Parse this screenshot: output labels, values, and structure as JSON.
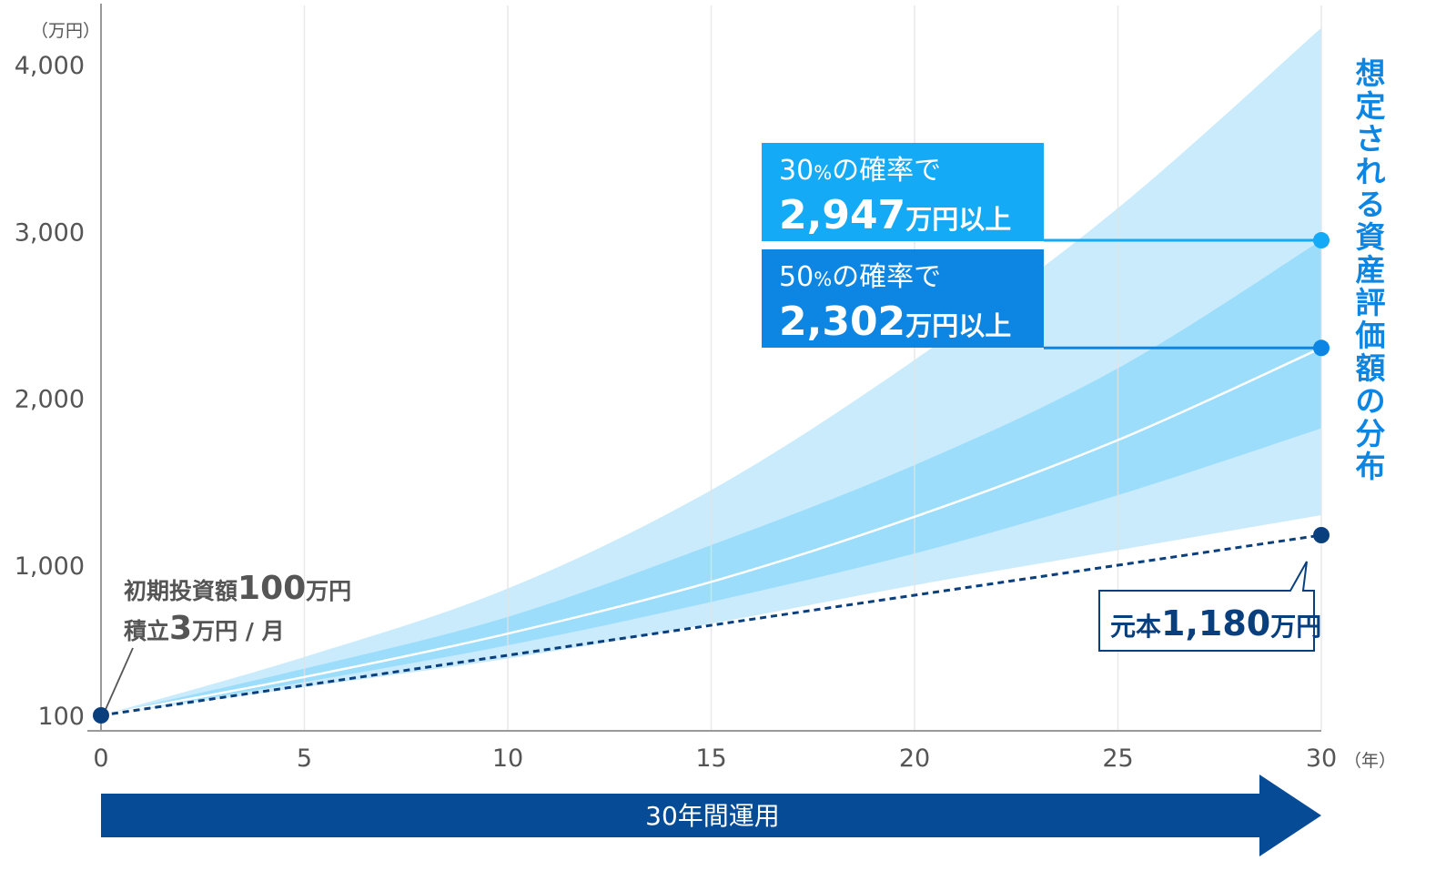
{
  "chart_data": {
    "type": "area",
    "y_unit": "（万円）",
    "x_unit": "（年）",
    "x_ticks": [
      "0",
      "5",
      "10",
      "15",
      "20",
      "25",
      "30"
    ],
    "y_ticks": [
      "100",
      "1,000",
      "2,000",
      "3,000",
      "4,000"
    ],
    "xlim": [
      0,
      30
    ],
    "ylim": [
      0,
      4200
    ],
    "grid": "vertical",
    "x": [
      0,
      5,
      10,
      15,
      20,
      25,
      30
    ],
    "series": [
      {
        "role": "outer_upper",
        "values": [
          100,
          450,
          860,
          1450,
          2230,
          3140,
          4220
        ]
      },
      {
        "role": "inner_upper",
        "values": [
          100,
          380,
          690,
          1120,
          1600,
          2180,
          2947
        ]
      },
      {
        "role": "median",
        "values": [
          100,
          330,
          590,
          900,
          1290,
          1750,
          2302
        ]
      },
      {
        "role": "inner_lower",
        "values": [
          100,
          300,
          520,
          780,
          1070,
          1420,
          1820
        ]
      },
      {
        "role": "outer_lower",
        "values": [
          100,
          270,
          440,
          650,
          880,
          1090,
          1300
        ]
      },
      {
        "role": "principal",
        "values": [
          100,
          280,
          460,
          640,
          820,
          1000,
          1180
        ]
      }
    ],
    "colors": {
      "outer_band": "#c9ebfc",
      "inner_band": "#93dafa",
      "median_line": "#ffffff",
      "principal_line": "#0a3f7d",
      "label_30": "#14aaf5",
      "label_50": "#0c86e2",
      "title_text": "#0c86e2",
      "arrow": "#064b96",
      "axis": "#999999",
      "grid": "#e2e2e2"
    },
    "side_title": [
      "想",
      "定",
      "さ",
      "れ",
      "る",
      "資",
      "産",
      "評",
      "価",
      "額",
      "の",
      "分",
      "布"
    ],
    "callouts": [
      {
        "line1_num": "30",
        "line1_pct": "%",
        "line1_rest": "の確率で",
        "value_num": "2,947",
        "value_rest": "万円以上",
        "y_value": 2947
      },
      {
        "line1_num": "50",
        "line1_pct": "%",
        "line1_rest": "の確率で",
        "value_num": "2,302",
        "value_rest": "万円以上",
        "y_value": 2302
      }
    ],
    "start_note": {
      "l1_pre": "初期投資額",
      "l1_num": "100",
      "l1_post": "万円",
      "l2_pre": "積立",
      "l2_num": "3",
      "l2_post": "万円 / 月"
    },
    "principal_note": {
      "pre": "元本",
      "num": "1,180",
      "post": "万円"
    },
    "period_arrow_label": "30年間運用"
  }
}
